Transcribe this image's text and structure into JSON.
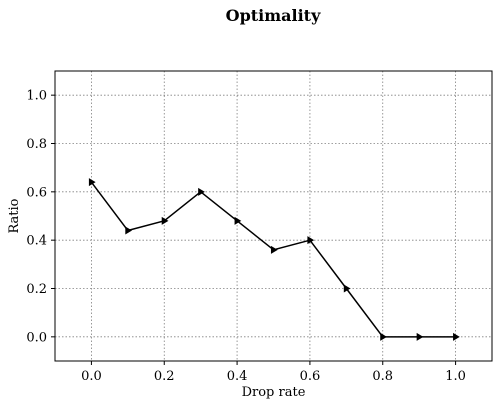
{
  "chart_data": {
    "type": "line",
    "title": "Optimality",
    "xlabel": "Drop rate",
    "ylabel": "Ratio",
    "xlim": [
      -0.1,
      1.1
    ],
    "ylim": [
      -0.1,
      1.1
    ],
    "xticks": [
      0.0,
      0.2,
      0.4,
      0.6,
      0.8,
      1.0
    ],
    "yticks": [
      0.0,
      0.2,
      0.4,
      0.6,
      0.8,
      1.0
    ],
    "xtick_labels": [
      "0.0",
      "0.2",
      "0.4",
      "0.6",
      "0.8",
      "1.0"
    ],
    "ytick_labels": [
      "0.0",
      "0.2",
      "0.4",
      "0.6",
      "0.8",
      "1.0"
    ],
    "grid": true,
    "marker": "right-pointing triangle",
    "series": [
      {
        "color": "#000000",
        "x": [
          0.0,
          0.1,
          0.2,
          0.3,
          0.4,
          0.5,
          0.6,
          0.7,
          0.8,
          0.9,
          1.0
        ],
        "y": [
          0.64,
          0.44,
          0.48,
          0.6,
          0.48,
          0.36,
          0.4,
          0.2,
          0.0,
          0.0,
          0.0
        ]
      }
    ]
  }
}
